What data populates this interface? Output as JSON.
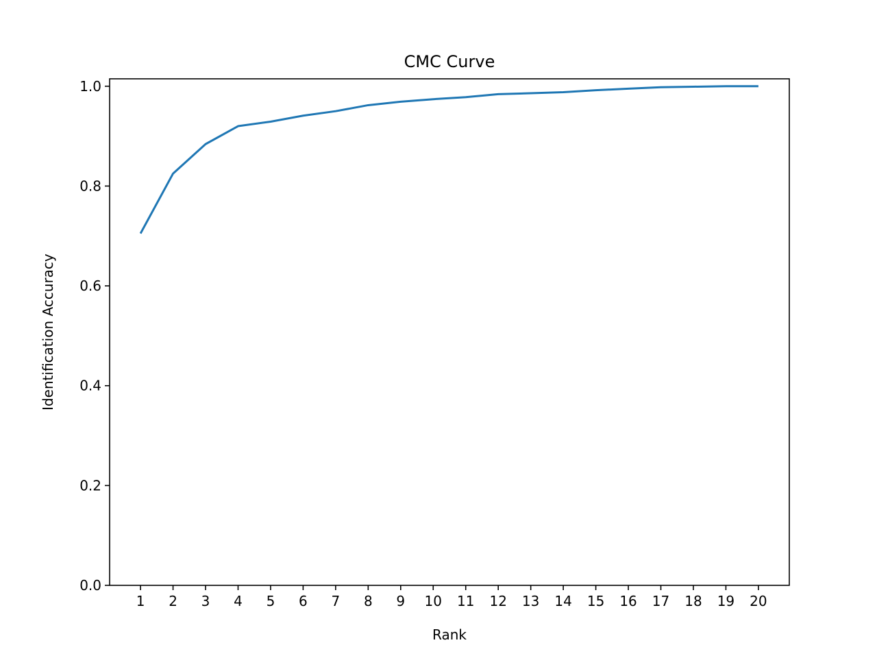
{
  "chart_data": {
    "type": "line",
    "title": "CMC Curve",
    "xlabel": "Rank",
    "ylabel": "Identification Accuracy",
    "x": [
      1,
      2,
      3,
      4,
      5,
      6,
      7,
      8,
      9,
      10,
      11,
      12,
      13,
      14,
      15,
      16,
      17,
      18,
      19,
      20
    ],
    "series": [
      {
        "values": [
          0.705,
          0.825,
          0.884,
          0.92,
          0.929,
          0.941,
          0.95,
          0.962,
          0.969,
          0.974,
          0.978,
          0.984,
          0.986,
          0.988,
          0.992,
          0.995,
          0.998,
          0.999,
          1.0,
          1.0
        ],
        "color": "#1f77b4"
      }
    ],
    "xticks": [
      "1",
      "2",
      "3",
      "4",
      "5",
      "6",
      "7",
      "8",
      "9",
      "10",
      "11",
      "12",
      "13",
      "14",
      "15",
      "16",
      "17",
      "18",
      "19",
      "20"
    ],
    "yticks": [
      0.0,
      0.2,
      0.4,
      0.6,
      0.8,
      1.0
    ],
    "ytick_labels": [
      "0.0",
      "0.2",
      "0.4",
      "0.6",
      "0.8",
      "1.0"
    ],
    "xlim": [
      0.05,
      20.95
    ],
    "ylim": [
      0.0,
      1.0148
    ],
    "grid": false,
    "legend": "none"
  }
}
